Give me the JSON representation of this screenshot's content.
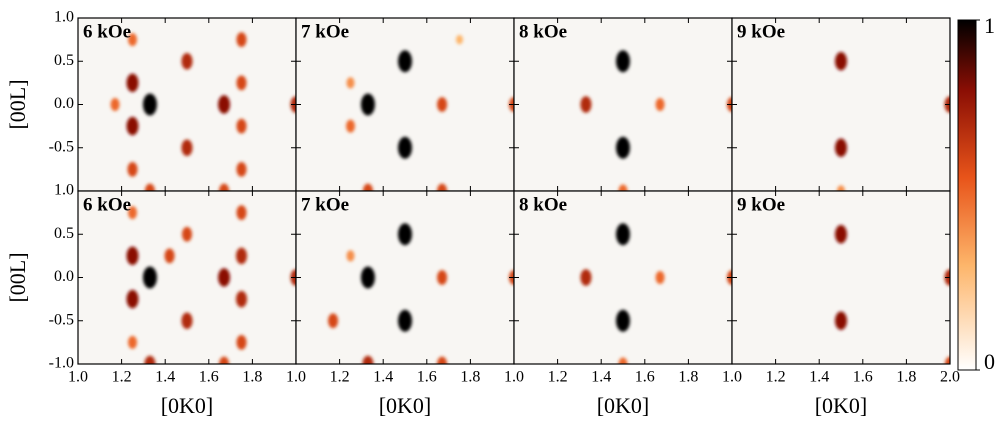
{
  "chart_data": {
    "type": "heatmap",
    "xlabel": "[0K0]",
    "ylabel": "[00L]",
    "xlim": [
      1.0,
      2.0
    ],
    "ylim": [
      -1.0,
      1.0
    ],
    "xticks": [
      {
        "value": 1.0,
        "label": "1.0"
      },
      1.2,
      1.4,
      1.6,
      1.8,
      {
        "value": 2.0,
        "label": "2.0"
      }
    ],
    "yticks_top": [
      0.5,
      {
        "value": 0.0,
        "label": "0.0"
      },
      -0.5,
      {
        "value": 1.0,
        "label": "1.0"
      }
    ],
    "yticks_bottom": [
      {
        "value": 1.0,
        "label": "1.0"
      },
      0.5,
      {
        "value": 0.0,
        "label": "0.0"
      },
      -0.5,
      {
        "value": -1.0,
        "label": "-1.0"
      }
    ],
    "colorbar": {
      "lim": [
        0,
        1
      ],
      "ticks": [
        0,
        1
      ]
    },
    "panels": [
      {
        "label": "6 kOe",
        "spots": [
          {
            "x": 1.33,
            "y": 0,
            "value": 1
          },
          {
            "x": 1.17,
            "y": 0,
            "value": 0.5
          },
          {
            "x": 1.25,
            "y": 0.25,
            "value": 0.8
          },
          {
            "x": 1.25,
            "y": -0.25,
            "value": 0.8
          },
          {
            "x": 1.25,
            "y": 0.75,
            "value": 0.5
          },
          {
            "x": 1.25,
            "y": -0.75,
            "value": 0.6
          },
          {
            "x": 1.5,
            "y": 0.5,
            "value": 0.7
          },
          {
            "x": 1.5,
            "y": -0.5,
            "value": 0.7
          },
          {
            "x": 1.67,
            "y": 0,
            "value": 0.8
          },
          {
            "x": 1.75,
            "y": 0.75,
            "value": 0.6
          },
          {
            "x": 1.75,
            "y": 0.25,
            "value": 0.6
          },
          {
            "x": 1.75,
            "y": -0.25,
            "value": 0.6
          },
          {
            "x": 1.75,
            "y": -0.75,
            "value": 0.6
          },
          {
            "x": 2.0,
            "y": 0,
            "value": 0.7
          },
          {
            "x": 1.33,
            "y": -1.0,
            "value": 0.6
          },
          {
            "x": 1.67,
            "y": -1.0,
            "value": 0.6
          }
        ]
      },
      {
        "label": "7 kOe",
        "spots": [
          {
            "x": 1.33,
            "y": 0,
            "value": 1
          },
          {
            "x": 1.5,
            "y": 0.5,
            "value": 1
          },
          {
            "x": 1.5,
            "y": -0.5,
            "value": 1
          },
          {
            "x": 1.67,
            "y": 0,
            "value": 0.6
          },
          {
            "x": 1.25,
            "y": 0.25,
            "value": 0.4
          },
          {
            "x": 1.25,
            "y": -0.25,
            "value": 0.5
          },
          {
            "x": 1.75,
            "y": 0.75,
            "value": 0.3
          },
          {
            "x": 1.33,
            "y": -1.0,
            "value": 0.6
          },
          {
            "x": 1.67,
            "y": -1.0,
            "value": 0.6
          },
          {
            "x": 2.0,
            "y": 0,
            "value": 0.6
          }
        ]
      },
      {
        "label": "8 kOe",
        "spots": [
          {
            "x": 1.5,
            "y": 0.5,
            "value": 1
          },
          {
            "x": 1.5,
            "y": -0.5,
            "value": 1
          },
          {
            "x": 1.33,
            "y": 0,
            "value": 0.7
          },
          {
            "x": 1.67,
            "y": 0,
            "value": 0.5
          },
          {
            "x": 2.0,
            "y": 0,
            "value": 0.6
          },
          {
            "x": 1.5,
            "y": -1.0,
            "value": 0.5
          }
        ]
      },
      {
        "label": "9 kOe",
        "spots": [
          {
            "x": 1.5,
            "y": 0.5,
            "value": 0.8
          },
          {
            "x": 1.5,
            "y": -0.5,
            "value": 0.8
          },
          {
            "x": 2.0,
            "y": 0,
            "value": 0.7
          },
          {
            "x": 1.5,
            "y": -1.0,
            "value": 0.4
          }
        ]
      },
      {
        "label": "6 kOe",
        "spots": [
          {
            "x": 1.33,
            "y": 0,
            "value": 1
          },
          {
            "x": 1.25,
            "y": 0.25,
            "value": 0.8
          },
          {
            "x": 1.25,
            "y": -0.25,
            "value": 0.8
          },
          {
            "x": 1.25,
            "y": 0.75,
            "value": 0.5
          },
          {
            "x": 1.25,
            "y": -0.75,
            "value": 0.5
          },
          {
            "x": 1.42,
            "y": 0.25,
            "value": 0.6
          },
          {
            "x": 1.5,
            "y": 0.5,
            "value": 0.6
          },
          {
            "x": 1.5,
            "y": -0.5,
            "value": 0.7
          },
          {
            "x": 1.67,
            "y": 0,
            "value": 0.8
          },
          {
            "x": 1.75,
            "y": 0.75,
            "value": 0.6
          },
          {
            "x": 1.75,
            "y": 0.25,
            "value": 0.7
          },
          {
            "x": 1.75,
            "y": -0.25,
            "value": 0.7
          },
          {
            "x": 1.75,
            "y": -0.75,
            "value": 0.6
          },
          {
            "x": 2.0,
            "y": 0,
            "value": 0.7
          },
          {
            "x": 1.33,
            "y": -1.0,
            "value": 0.7
          },
          {
            "x": 1.67,
            "y": -1.0,
            "value": 0.6
          }
        ]
      },
      {
        "label": "7 kOe",
        "spots": [
          {
            "x": 1.33,
            "y": 0,
            "value": 1
          },
          {
            "x": 1.5,
            "y": 0.5,
            "value": 1
          },
          {
            "x": 1.5,
            "y": -0.5,
            "value": 1
          },
          {
            "x": 1.67,
            "y": 0,
            "value": 0.6
          },
          {
            "x": 1.17,
            "y": -0.5,
            "value": 0.6
          },
          {
            "x": 1.25,
            "y": 0.25,
            "value": 0.4
          },
          {
            "x": 1.33,
            "y": -1.0,
            "value": 0.7
          },
          {
            "x": 1.67,
            "y": -1.0,
            "value": 0.6
          },
          {
            "x": 2.0,
            "y": 0,
            "value": 0.6
          }
        ]
      },
      {
        "label": "8 kOe",
        "spots": [
          {
            "x": 1.5,
            "y": 0.5,
            "value": 1
          },
          {
            "x": 1.5,
            "y": -0.5,
            "value": 1
          },
          {
            "x": 1.33,
            "y": 0,
            "value": 0.7
          },
          {
            "x": 1.67,
            "y": 0,
            "value": 0.5
          },
          {
            "x": 2.0,
            "y": 0,
            "value": 0.6
          },
          {
            "x": 1.5,
            "y": -1.0,
            "value": 0.5
          }
        ]
      },
      {
        "label": "9 kOe",
        "spots": [
          {
            "x": 1.5,
            "y": 0.5,
            "value": 0.8
          },
          {
            "x": 1.5,
            "y": -0.5,
            "value": 0.8
          },
          {
            "x": 2.0,
            "y": 0,
            "value": 0.7
          },
          {
            "x": 2.0,
            "y": -1.0,
            "value": 0.6
          }
        ]
      }
    ]
  }
}
